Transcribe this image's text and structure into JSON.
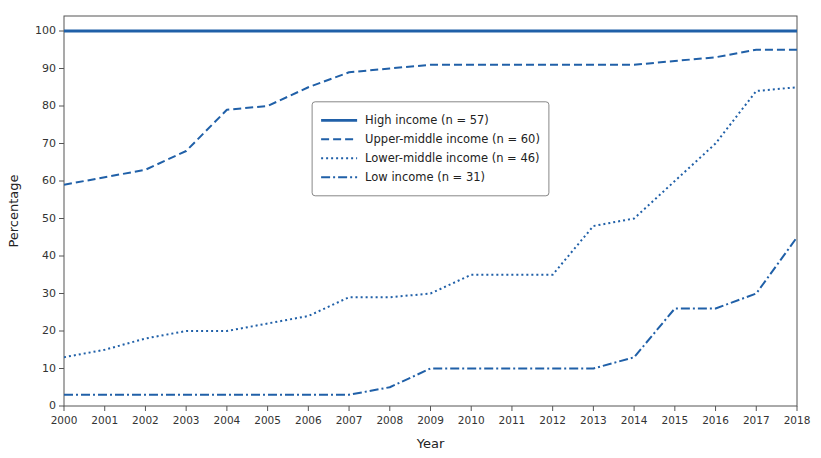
{
  "chart_data": {
    "type": "line",
    "xlabel": "Year",
    "ylabel": "Percentage",
    "x": [
      2000,
      2001,
      2002,
      2003,
      2004,
      2005,
      2006,
      2007,
      2008,
      2009,
      2010,
      2011,
      2012,
      2013,
      2014,
      2015,
      2016,
      2017,
      2018
    ],
    "series": [
      {
        "name": "High income (n = 57)",
        "color": "#2060a8",
        "line_style": "solid",
        "values": [
          100,
          100,
          100,
          100,
          100,
          100,
          100,
          100,
          100,
          100,
          100,
          100,
          100,
          100,
          100,
          100,
          100,
          100,
          100
        ]
      },
      {
        "name": "Upper-middle income (n = 60)",
        "color": "#2060a8",
        "line_style": "dashed",
        "values": [
          59,
          61,
          63,
          68,
          79,
          80,
          85,
          89,
          90,
          91,
          91,
          91,
          91,
          91,
          91,
          92,
          93,
          95,
          95
        ]
      },
      {
        "name": "Lower-middle income (n = 46)",
        "color": "#2060a8",
        "line_style": "dotted",
        "values": [
          13,
          15,
          18,
          20,
          20,
          22,
          24,
          29,
          29,
          30,
          35,
          35,
          35,
          48,
          50,
          60,
          70,
          84,
          85
        ]
      },
      {
        "name": "Low income (n = 31)",
        "color": "#2060a8",
        "line_style": "dashdot",
        "values": [
          3,
          3,
          3,
          3,
          3,
          3,
          3,
          3,
          5,
          10,
          10,
          10,
          10,
          10,
          13,
          26,
          26,
          30,
          45
        ]
      }
    ],
    "xlim": [
      2000,
      2018
    ],
    "xticks": [
      2000,
      2001,
      2002,
      2003,
      2004,
      2005,
      2006,
      2007,
      2008,
      2009,
      2010,
      2011,
      2012,
      2013,
      2014,
      2015,
      2016,
      2017,
      2018
    ],
    "ylim": [
      0,
      104
    ],
    "yticks": [
      0,
      10,
      20,
      30,
      40,
      50,
      60,
      70,
      80,
      90,
      100
    ],
    "grid": false,
    "legend": "center"
  }
}
